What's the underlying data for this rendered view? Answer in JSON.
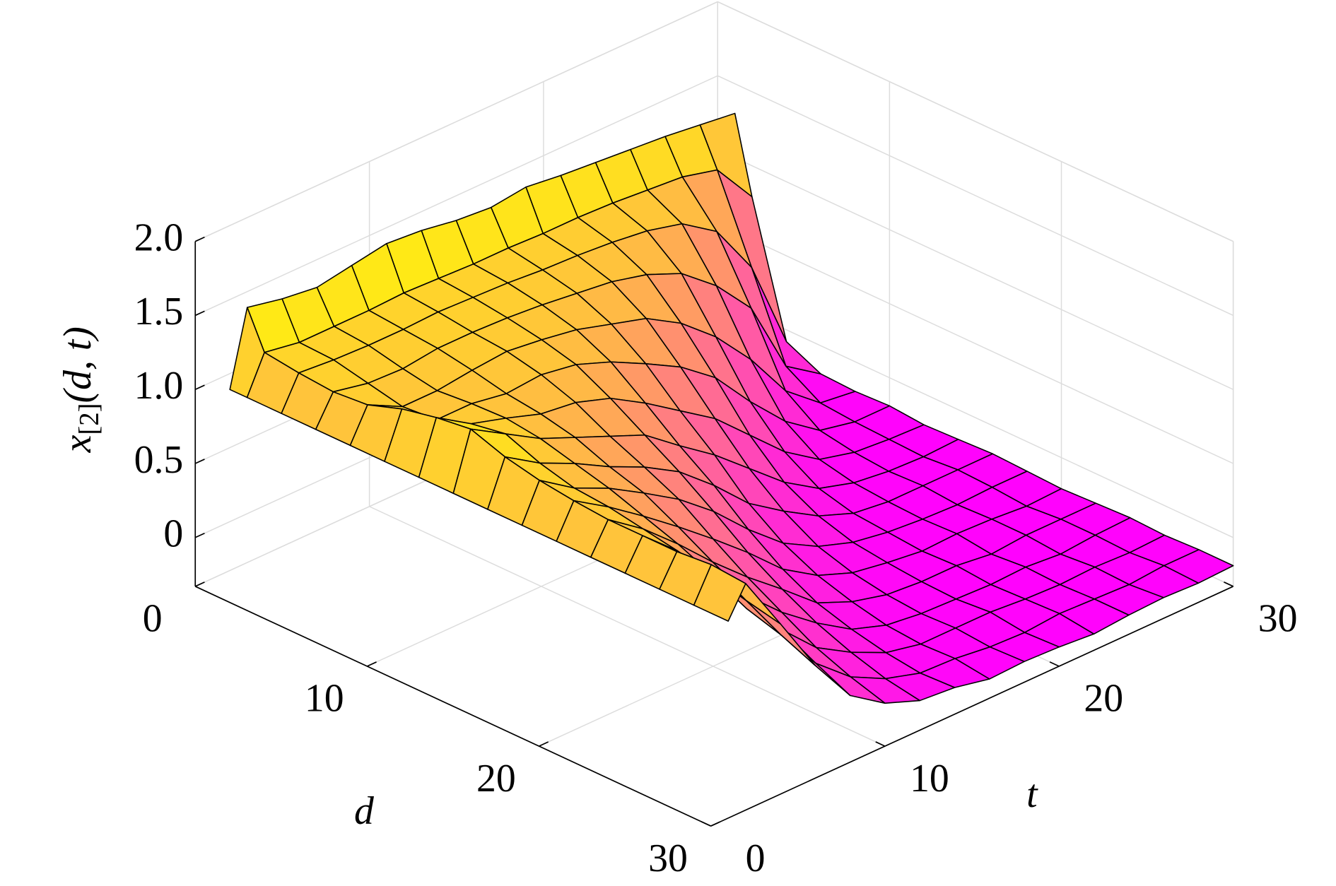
{
  "chart_data": {
    "type": "surface",
    "xlabel": "d",
    "ylabel": "t",
    "zlabel": {
      "main": "x",
      "sub": "[2]",
      "args": "(d, t)"
    },
    "x": [
      1,
      2,
      4,
      6,
      8,
      10,
      12,
      14,
      16,
      18,
      20,
      22,
      24,
      26,
      28,
      30
    ],
    "y": [
      1,
      2,
      4,
      6,
      8,
      10,
      12,
      14,
      16,
      18,
      20,
      22,
      24,
      26,
      28,
      30
    ],
    "z": [
      [
        1,
        1,
        1,
        1,
        1,
        1,
        1,
        1,
        1,
        1,
        1,
        1,
        1,
        1,
        1,
        1
      ],
      [
        1.5,
        1.25,
        1.22,
        1.2,
        1.22,
        1.3,
        1.35,
        1.38,
        1.3,
        1.25,
        1.22,
        1.2,
        1.2,
        1.2,
        1.22,
        1.2
      ],
      [
        1.45,
        1.21,
        1.2,
        1.15,
        1.1,
        1.12,
        1.2,
        1.24,
        1.15,
        1.09,
        1.07,
        1.03,
        0.99,
        0.93,
        0.87,
        0.82
      ],
      [
        1.42,
        1.21,
        1.19,
        1.14,
        1.1,
        1.12,
        1.13,
        1.1,
        1.04,
        0.98,
        0.9,
        0.82,
        0.72,
        0.6,
        0.53,
        0.43
      ],
      [
        1.46,
        1.21,
        1.19,
        1.17,
        1.13,
        1.08,
        1.05,
        1.0,
        0.91,
        0.84,
        0.72,
        0.59,
        0.47,
        0.35,
        0.23,
        0.12
      ],
      [
        1.5,
        1.22,
        1.2,
        1.17,
        1.15,
        1.1,
        1.02,
        0.9,
        0.8,
        0.69,
        0.53,
        0.38,
        0.25,
        0.12,
        0.03,
        -0.04
      ],
      [
        1.48,
        1.21,
        1.19,
        1.16,
        1.12,
        1.06,
        0.94,
        0.8,
        0.66,
        0.5,
        0.33,
        0.19,
        0.07,
        -0.02,
        -0.09,
        -0.13
      ],
      [
        1.44,
        1.2,
        1.18,
        1.14,
        1.08,
        0.97,
        0.8,
        0.62,
        0.46,
        0.27,
        0.11,
        -0.01,
        -0.08,
        -0.13,
        -0.16,
        -0.15
      ],
      [
        1.42,
        1.2,
        1.16,
        1.11,
        1.01,
        0.85,
        0.64,
        0.45,
        0.23,
        0.07,
        -0.04,
        -0.11,
        -0.16,
        -0.18,
        -0.17,
        -0.2
      ],
      [
        1.45,
        1.19,
        1.15,
        1.08,
        0.94,
        0.72,
        0.48,
        0.25,
        0.07,
        -0.06,
        -0.13,
        -0.17,
        -0.19,
        -0.18,
        -0.2,
        -0.19
      ],
      [
        1.42,
        1.19,
        1.13,
        1.02,
        0.8,
        0.54,
        0.26,
        0.05,
        -0.07,
        -0.14,
        -0.17,
        -0.19,
        -0.2,
        -0.18,
        -0.21,
        -0.2
      ],
      [
        1.4,
        1.18,
        1.1,
        0.92,
        0.6,
        0.27,
        0.04,
        -0.1,
        -0.16,
        -0.18,
        -0.2,
        -0.19,
        -0.21,
        -0.2,
        -0.19,
        -0.22
      ],
      [
        1.38,
        1.16,
        1.04,
        0.73,
        0.34,
        0.03,
        -0.12,
        -0.17,
        -0.19,
        -0.2,
        -0.19,
        -0.22,
        -0.2,
        -0.21,
        -0.2,
        -0.2
      ],
      [
        1.36,
        1.14,
        0.88,
        0.47,
        0.02,
        -0.14,
        -0.18,
        -0.2,
        -0.19,
        -0.21,
        -0.2,
        -0.2,
        -0.22,
        -0.2,
        -0.21,
        -0.19
      ],
      [
        1.33,
        1.08,
        0.53,
        -0.03,
        -0.17,
        -0.19,
        -0.2,
        -0.21,
        -0.19,
        -0.2,
        -0.22,
        -0.2,
        -0.2,
        -0.21,
        -0.19,
        -0.2
      ],
      [
        1.3,
        0.79,
        -0.08,
        -0.19,
        -0.2,
        -0.19,
        -0.21,
        -0.2,
        -0.19,
        -0.2,
        -0.21,
        -0.2,
        -0.19,
        -0.2,
        -0.19,
        -0.19
      ]
    ],
    "xlim": [
      0,
      30
    ],
    "ylim": [
      0,
      30
    ],
    "zlim": [
      -0.33,
      2.0
    ],
    "xticks": [
      0,
      10,
      20,
      30
    ],
    "yticks": [
      0,
      10,
      20,
      30
    ],
    "zticks": [
      0,
      0.5,
      {
        "value": 1,
        "label": "1.0"
      },
      1.5,
      {
        "value": 2,
        "label": "2.0"
      }
    ],
    "colormap": [
      "#ff00ff",
      "#ffff00"
    ],
    "edgecolor": "#000000",
    "grid": true
  }
}
